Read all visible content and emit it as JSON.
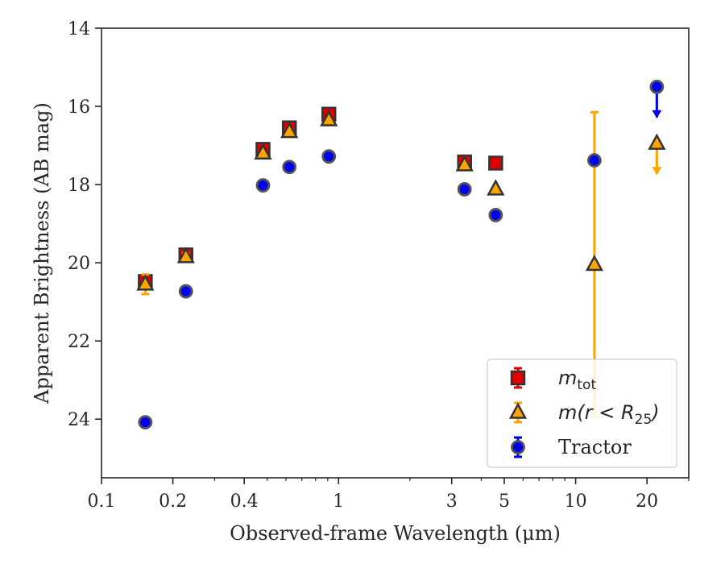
{
  "chart_data": {
    "type": "scatter",
    "xlabel": "Observed-frame Wavelength (μm)",
    "ylabel": "Apparent Brightness (AB mag)",
    "xscale": "log",
    "xlim": [
      0.1,
      30
    ],
    "ylim": [
      25.5,
      14
    ],
    "y_inverted": true,
    "xticks": [
      {
        "value": 0.1,
        "label": "0.1"
      },
      {
        "value": 0.2,
        "label": "0.2"
      },
      {
        "value": 0.4,
        "label": "0.4"
      },
      {
        "value": 1,
        "label": "1"
      },
      {
        "value": 3,
        "label": "3"
      },
      {
        "value": 5,
        "label": "5"
      },
      {
        "value": 10,
        "label": "10"
      },
      {
        "value": 20,
        "label": "20"
      }
    ],
    "yticks": [
      {
        "value": 14,
        "label": "14"
      },
      {
        "value": 16,
        "label": "16"
      },
      {
        "value": 18,
        "label": "18"
      },
      {
        "value": 20,
        "label": "20"
      },
      {
        "value": 22,
        "label": "22"
      },
      {
        "value": 24,
        "label": "24"
      }
    ],
    "legend_position": "lower-right",
    "series": [
      {
        "key": "mtot",
        "legend": {
          "base": "m",
          "sub": "tot"
        },
        "marker": "square",
        "color": "#e00000",
        "points": [
          {
            "x": 0.153,
            "y": 20.48,
            "err": 0.1
          },
          {
            "x": 0.227,
            "y": 19.8,
            "err": 0.1
          },
          {
            "x": 0.48,
            "y": 17.1,
            "err": 0.05
          },
          {
            "x": 0.62,
            "y": 16.55,
            "err": 0.05
          },
          {
            "x": 0.91,
            "y": 16.2,
            "err": 0.05
          },
          {
            "x": 3.4,
            "y": 17.42,
            "err": 0.05
          },
          {
            "x": 4.6,
            "y": 17.45,
            "err": 0.05
          }
        ]
      },
      {
        "key": "mr25",
        "legend": {
          "base": "m(r < R",
          "sub": "25",
          "end": ")"
        },
        "marker": "triangle",
        "color": "#ffa500",
        "points": [
          {
            "x": 0.153,
            "y": 20.55,
            "err": 0.25
          },
          {
            "x": 0.227,
            "y": 19.85,
            "err": 0.1
          },
          {
            "x": 0.48,
            "y": 17.2,
            "err": 0.05
          },
          {
            "x": 0.62,
            "y": 16.65,
            "err": 0.05
          },
          {
            "x": 0.91,
            "y": 16.35,
            "err": 0.05
          },
          {
            "x": 3.4,
            "y": 17.5,
            "err": 0.05
          },
          {
            "x": 4.6,
            "y": 18.12,
            "err": 0.05
          },
          {
            "x": 12.0,
            "y": 20.05,
            "err_lo": 3.9,
            "err_hi": 3.9
          },
          {
            "x": 22.0,
            "y": 16.95,
            "upper_limit": true
          }
        ]
      },
      {
        "key": "tractor",
        "legend": {
          "base": "Tractor"
        },
        "marker": "circle",
        "color": "#0000ee",
        "points": [
          {
            "x": 0.153,
            "y": 24.08,
            "err": 0.05
          },
          {
            "x": 0.227,
            "y": 20.73,
            "err": 0.05
          },
          {
            "x": 0.48,
            "y": 18.02,
            "err": 0.05
          },
          {
            "x": 0.62,
            "y": 17.55,
            "err": 0.05
          },
          {
            "x": 0.91,
            "y": 17.28,
            "err": 0.05
          },
          {
            "x": 3.4,
            "y": 18.12,
            "err": 0.05
          },
          {
            "x": 4.6,
            "y": 18.78,
            "err": 0.05
          },
          {
            "x": 12.0,
            "y": 17.38,
            "err": 0.05
          },
          {
            "x": 22.0,
            "y": 15.5,
            "upper_limit": true
          }
        ]
      }
    ]
  }
}
